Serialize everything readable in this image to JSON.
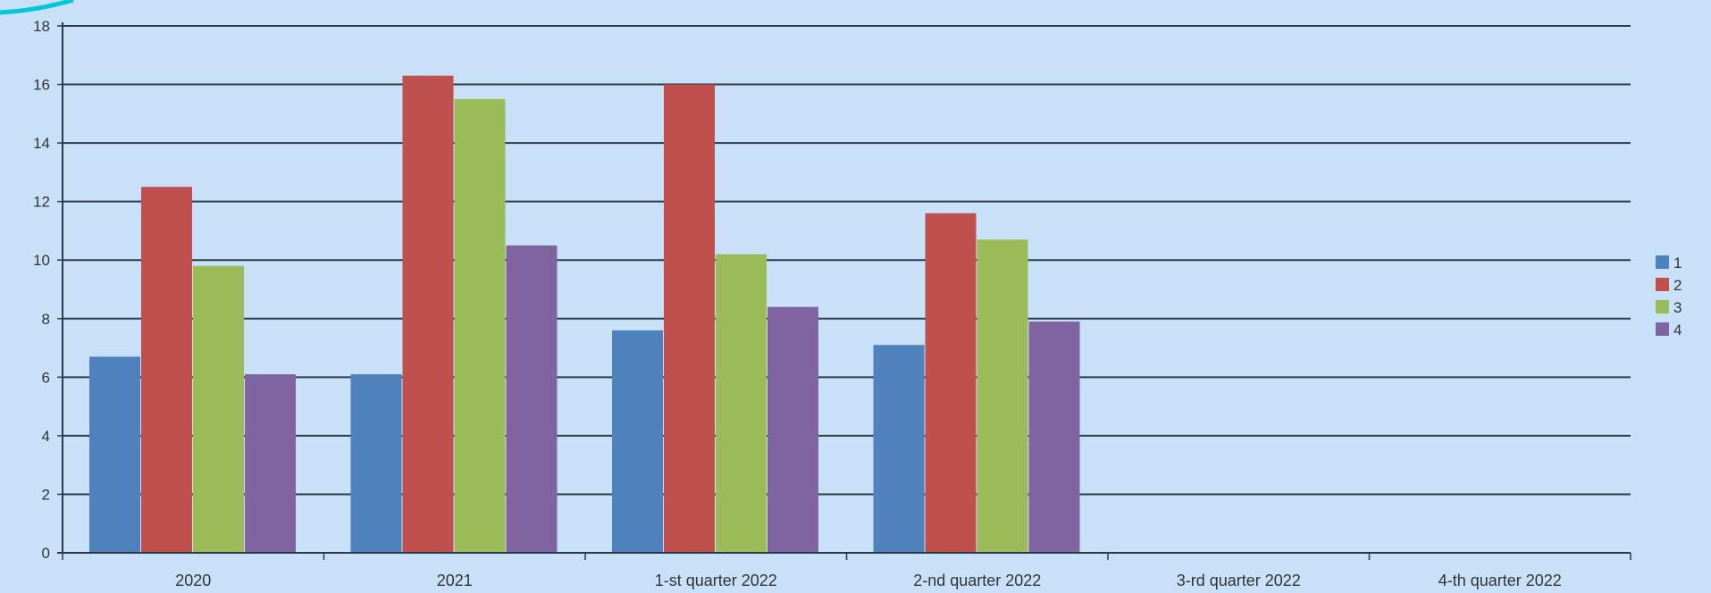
{
  "colors": {
    "background": "#c8e0f8",
    "gridline": "#2b3a44",
    "axis": "#2b3a44",
    "text": "#333333",
    "corner_swoosh": "#00c8d8"
  },
  "chart_data": {
    "type": "bar",
    "categories": [
      "2020",
      "2021",
      "1-st quarter 2022",
      "2-nd quarter 2022",
      "3-rd quarter 2022",
      "4-th quarter 2022"
    ],
    "series": [
      {
        "name": "1",
        "color": "#4f81bd",
        "values": [
          6.7,
          6.1,
          7.6,
          7.1,
          null,
          null
        ]
      },
      {
        "name": "2",
        "color": "#c0504d",
        "values": [
          12.5,
          16.3,
          16.0,
          11.6,
          null,
          null
        ]
      },
      {
        "name": "3",
        "color": "#9bbb59",
        "values": [
          9.8,
          15.5,
          10.2,
          10.7,
          null,
          null
        ]
      },
      {
        "name": "4",
        "color": "#8064a2",
        "values": [
          6.1,
          10.5,
          8.4,
          7.9,
          null,
          null
        ]
      }
    ],
    "y_ticks": [
      "0",
      "2",
      "4",
      "6",
      "8",
      "10",
      "12",
      "14",
      "16",
      "18"
    ],
    "ylim": [
      0,
      18
    ],
    "grid": true,
    "legend_position": "right",
    "title": "",
    "xlabel": "",
    "ylabel": ""
  }
}
